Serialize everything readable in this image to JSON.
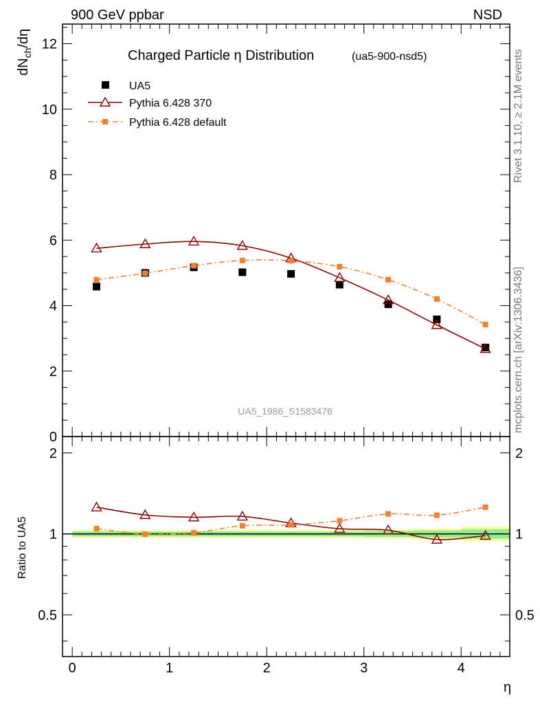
{
  "header": {
    "left": "900 GeV ppbar",
    "right": "NSD"
  },
  "side_labels": {
    "rivet": "Rivet 3.1.10, ≥ 2.1M events",
    "mcplots": "mcplots.cern.ch [arXiv:1306.3436]"
  },
  "chart_data": {
    "type": "scatter",
    "title": "Charged Particle η Distribution",
    "subtitle": "(ua5-900-nsd5)",
    "analysis_id": "UA5_1986_S1583476",
    "xlabel": "η",
    "ylabel": "dN_ch/dη",
    "ratio_ylabel": "Ratio to UA5",
    "xlim": [
      -0.1,
      4.5
    ],
    "ylim": [
      0,
      12.6
    ],
    "ratio_ylim": [
      0.35,
      2.3
    ],
    "x_ticks": [
      "0",
      "1",
      "2",
      "3",
      "4"
    ],
    "y_ticks": [
      "0",
      "2",
      "4",
      "6",
      "8",
      "10",
      "12"
    ],
    "ratio_ticks": [
      "0.5",
      "1",
      "2"
    ],
    "x": [
      0.25,
      0.75,
      1.25,
      1.75,
      2.25,
      2.75,
      3.25,
      3.75,
      4.25
    ],
    "bin_edges": [
      0.0,
      0.5,
      1.0,
      1.5,
      2.0,
      2.5,
      3.0,
      3.5,
      4.0,
      4.5
    ],
    "legend_position": "top-left",
    "series": [
      {
        "name": "UA5",
        "style": "data",
        "color": "#000000",
        "values": [
          4.58,
          5.0,
          5.17,
          5.02,
          4.97,
          4.64,
          4.04,
          3.58,
          2.72
        ],
        "ratio": [
          1.0,
          1.0,
          1.0,
          1.0,
          1.0,
          1.0,
          1.0,
          1.0,
          1.0
        ]
      },
      {
        "name": "Pythia 6.428 370",
        "style": "line-triangle",
        "color": "#8b0000",
        "values": [
          5.75,
          5.88,
          5.96,
          5.83,
          5.45,
          4.85,
          4.17,
          3.41,
          2.68
        ],
        "ratio": [
          1.256,
          1.176,
          1.153,
          1.161,
          1.097,
          1.045,
          1.032,
          0.953,
          0.985
        ]
      },
      {
        "name": "Pythia 6.428 default",
        "style": "dashdot-square",
        "color": "#f28030",
        "values": [
          4.79,
          4.99,
          5.22,
          5.38,
          5.37,
          5.19,
          4.79,
          4.2,
          3.42
        ],
        "ratio": [
          1.046,
          0.998,
          1.01,
          1.072,
          1.08,
          1.119,
          1.186,
          1.173,
          1.257
        ]
      }
    ],
    "uncertainty_bands": {
      "stat_color": "#90ee90",
      "total_color": "#ffff88",
      "stat_half": [
        0.02,
        0.02,
        0.02,
        0.02,
        0.02,
        0.02,
        0.025,
        0.03,
        0.04
      ],
      "total_half": [
        0.03,
        0.03,
        0.03,
        0.03,
        0.03,
        0.03,
        0.035,
        0.045,
        0.06
      ]
    }
  }
}
